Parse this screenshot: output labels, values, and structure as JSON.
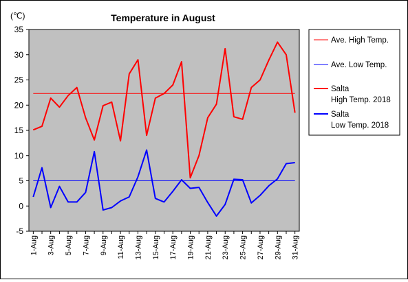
{
  "chart_data": {
    "type": "line",
    "title": "Temperature in August",
    "unit_label": "(℃)",
    "xlabel": "",
    "ylabel": "",
    "ylim": [
      -5,
      35
    ],
    "yticks": [
      -5,
      0,
      5,
      10,
      15,
      20,
      25,
      30,
      35
    ],
    "grid": false,
    "plot_background": "#C0C0C0",
    "legend_position": "right",
    "x": [
      "1-Aug",
      "2-Aug",
      "3-Aug",
      "4-Aug",
      "5-Aug",
      "6-Aug",
      "7-Aug",
      "8-Aug",
      "9-Aug",
      "10-Aug",
      "11-Aug",
      "12-Aug",
      "13-Aug",
      "14-Aug",
      "15-Aug",
      "16-Aug",
      "17-Aug",
      "18-Aug",
      "19-Aug",
      "20-Aug",
      "21-Aug",
      "22-Aug",
      "23-Aug",
      "24-Aug",
      "25-Aug",
      "26-Aug",
      "27-Aug",
      "28-Aug",
      "29-Aug",
      "30-Aug",
      "31-Aug"
    ],
    "x_tick_labels": [
      "1-Aug",
      "3-Aug",
      "5-Aug",
      "7-Aug",
      "9-Aug",
      "11-Aug",
      "13-Aug",
      "15-Aug",
      "17-Aug",
      "19-Aug",
      "21-Aug",
      "23-Aug",
      "25-Aug",
      "27-Aug",
      "29-Aug",
      "31-Aug"
    ],
    "series": [
      {
        "name": "Ave. High Temp.",
        "color": "#FF0000",
        "stroke": "thin",
        "values": [
          22.3,
          22.3,
          22.3,
          22.3,
          22.3,
          22.3,
          22.3,
          22.3,
          22.3,
          22.3,
          22.3,
          22.3,
          22.3,
          22.3,
          22.3,
          22.3,
          22.3,
          22.3,
          22.3,
          22.3,
          22.3,
          22.3,
          22.3,
          22.3,
          22.3,
          22.3,
          22.3,
          22.3,
          22.3,
          22.3,
          22.3
        ]
      },
      {
        "name": "Ave. Low Temp.",
        "color": "#0000FF",
        "stroke": "thin",
        "values": [
          5,
          5,
          5,
          5,
          5,
          5,
          5,
          5,
          5,
          5,
          5,
          5,
          5,
          5,
          5,
          5,
          5,
          5,
          5,
          5,
          5,
          5,
          5,
          5,
          5,
          5,
          5,
          5,
          5,
          5,
          5
        ]
      },
      {
        "name": "Salta High Temp. 2018",
        "legend_lines": [
          "Salta",
          "High Temp. 2018"
        ],
        "color": "#FF0000",
        "stroke": "thick",
        "values": [
          15.1,
          15.8,
          21.4,
          19.6,
          21.9,
          23.5,
          17.5,
          13.1,
          19.9,
          20.6,
          12.9,
          26.2,
          29.0,
          14.0,
          21.4,
          22.3,
          24.0,
          28.6,
          5.6,
          10.0,
          17.5,
          20.2,
          31.2,
          17.7,
          17.2,
          23.5,
          25.0,
          28.9,
          32.5,
          30.0,
          18.5
        ]
      },
      {
        "name": "Salta Low Temp. 2018",
        "legend_lines": [
          "Salta",
          "Low Temp. 2018"
        ],
        "color": "#0000FF",
        "stroke": "thick",
        "values": [
          1.8,
          7.6,
          -0.3,
          3.9,
          0.8,
          0.8,
          2.7,
          10.8,
          -0.8,
          -0.3,
          1.0,
          1.8,
          5.8,
          11.1,
          1.5,
          0.8,
          2.9,
          5.2,
          3.5,
          3.7,
          0.7,
          -2.0,
          0.3,
          5.3,
          5.2,
          0.6,
          2.1,
          4.0,
          5.4,
          8.4,
          8.6
        ]
      }
    ]
  }
}
